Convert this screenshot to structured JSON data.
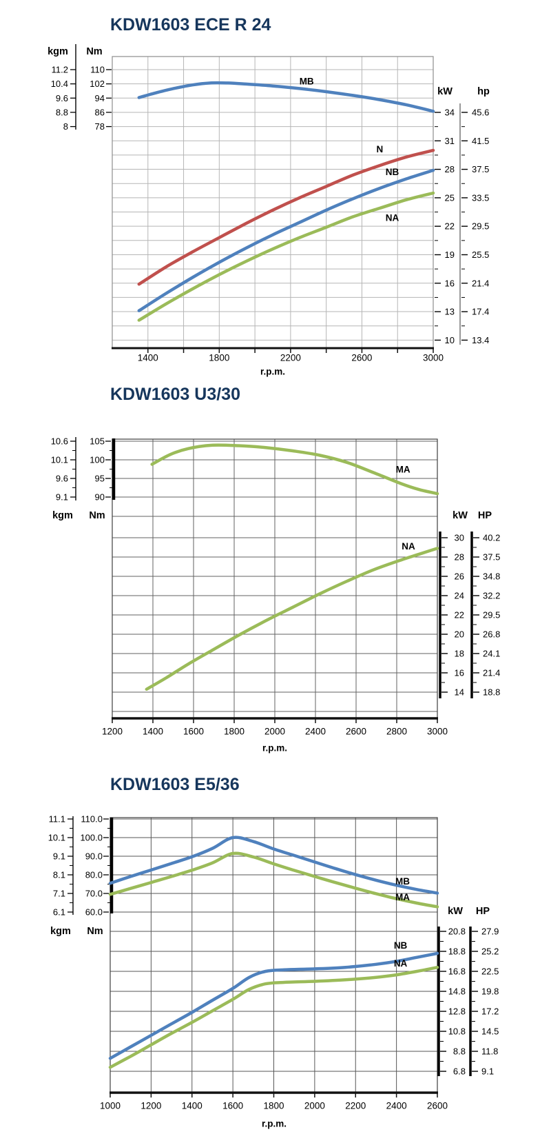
{
  "colors": {
    "blue": "#4f81bd",
    "red": "#c0504d",
    "green": "#9bbb59",
    "title_navy": "#16365c"
  },
  "charts": [
    {
      "title": "KDW1603 ECE R 24",
      "left_scales": {
        "kgm_header": "kgm",
        "nm_header": "Nm",
        "kgm": [
          "11.2",
          "10.4",
          "9.6",
          "8.8",
          "8"
        ],
        "nm": [
          "110",
          "102",
          "94",
          "86",
          "78"
        ]
      },
      "right_scales": {
        "kw_header": "kW",
        "hp_header": "hp",
        "kw": [
          "34",
          "31",
          "28",
          "25",
          "22",
          "19",
          "16",
          "13",
          "10"
        ],
        "hp": [
          "45.6",
          "41.5",
          "37.5",
          "33.5",
          "29.5",
          "25.5",
          "21.4",
          "17.4",
          "13.4"
        ]
      },
      "x_axis": {
        "labels": [
          "1400",
          "1800",
          "2200",
          "2600",
          "3000"
        ],
        "unit": "r.p.m."
      },
      "chart_data": {
        "type": "line",
        "xlabel": "r.p.m.",
        "x_range": [
          1200,
          3000
        ],
        "torque_axis": {
          "units": [
            "kgm",
            "Nm"
          ],
          "nm_ticks": [
            110,
            102,
            94,
            86,
            78
          ]
        },
        "power_axis": {
          "units": [
            "kW",
            "hp"
          ],
          "kw_ticks": [
            34,
            31,
            28,
            25,
            22,
            19,
            16,
            13,
            10
          ]
        },
        "series": [
          {
            "name": "MB",
            "axis": "torque",
            "color": "#4f81bd",
            "label_at": [
              2290,
              103.4
            ],
            "points": [
              [
                1350,
                94.3
              ],
              [
                1450,
                97.1
              ],
              [
                1550,
                99.5
              ],
              [
                1650,
                101.4
              ],
              [
                1750,
                102.5
              ],
              [
                1850,
                102.5
              ],
              [
                1950,
                101.9
              ],
              [
                2100,
                100.8
              ],
              [
                2250,
                99.4
              ],
              [
                2400,
                97.6
              ],
              [
                2550,
                95.5
              ],
              [
                2700,
                93.1
              ],
              [
                2850,
                90.2
              ],
              [
                3000,
                86.6
              ]
            ]
          },
          {
            "name": "N",
            "axis": "power",
            "color": "#c0504d",
            "label_at": [
              2700,
              30.1
            ],
            "points": [
              [
                1350,
                15.9
              ],
              [
                1500,
                17.7
              ],
              [
                1650,
                19.3
              ],
              [
                1800,
                20.8
              ],
              [
                1950,
                22.3
              ],
              [
                2100,
                23.7
              ],
              [
                2250,
                25.0
              ],
              [
                2400,
                26.2
              ],
              [
                2550,
                27.4
              ],
              [
                2700,
                28.4
              ],
              [
                2850,
                29.3
              ],
              [
                3000,
                30.0
              ]
            ]
          },
          {
            "name": "NB",
            "axis": "power",
            "color": "#4f81bd",
            "label_at": [
              2770,
              27.7
            ],
            "points": [
              [
                1350,
                13.1
              ],
              [
                1500,
                14.9
              ],
              [
                1650,
                16.6
              ],
              [
                1800,
                18.2
              ],
              [
                1950,
                19.7
              ],
              [
                2100,
                21.1
              ],
              [
                2250,
                22.4
              ],
              [
                2400,
                23.7
              ],
              [
                2550,
                24.9
              ],
              [
                2700,
                26.0
              ],
              [
                2850,
                27.0
              ],
              [
                3000,
                27.9
              ]
            ]
          },
          {
            "name": "NA",
            "axis": "power",
            "color": "#9bbb59",
            "label_at": [
              2770,
              22.9
            ],
            "points": [
              [
                1350,
                12.1
              ],
              [
                1500,
                13.8
              ],
              [
                1650,
                15.4
              ],
              [
                1800,
                16.9
              ],
              [
                1950,
                18.3
              ],
              [
                2100,
                19.6
              ],
              [
                2250,
                20.8
              ],
              [
                2400,
                21.9
              ],
              [
                2550,
                23.0
              ],
              [
                2700,
                23.9
              ],
              [
                2850,
                24.8
              ],
              [
                3000,
                25.5
              ]
            ]
          }
        ]
      }
    },
    {
      "title": "KDW1603 U3/30",
      "left_scales": {
        "kgm_header": "kgm",
        "nm_header": "Nm",
        "kgm": [
          "10.6",
          "10.1",
          "9.6",
          "9.1"
        ],
        "nm": [
          "105",
          "100",
          "95",
          "90"
        ]
      },
      "right_scales": {
        "kw_header": "kW",
        "hp_header": "HP",
        "kw": [
          "30",
          "28",
          "26",
          "24",
          "22",
          "20",
          "18",
          "16",
          "14"
        ],
        "hp": [
          "40.2",
          "37.5",
          "34.8",
          "32.2",
          "29.5",
          "26.8",
          "24.1",
          "21.4",
          "18.8"
        ]
      },
      "x_axis": {
        "labels": [
          "1200",
          "1400",
          "1600",
          "1800",
          "2000",
          "2400",
          "2600",
          "2800",
          "3000"
        ],
        "unit": "r.p.m."
      },
      "chart_data": {
        "type": "line",
        "xlabel": "r.p.m.",
        "x_range": [
          1200,
          3000
        ],
        "note_axis_labels_as_printed": [
          "1200",
          "1400",
          "1600",
          "1800",
          "2000",
          "2400",
          "2600",
          "2800",
          "3000"
        ],
        "torque_axis": {
          "units": [
            "kgm",
            "Nm"
          ],
          "nm_ticks": [
            105,
            100,
            95,
            90
          ]
        },
        "power_axis": {
          "units": [
            "kW",
            "HP"
          ],
          "kw_ticks": [
            30,
            28,
            26,
            24,
            22,
            20,
            18,
            16,
            14
          ]
        },
        "series": [
          {
            "name": "MA",
            "axis": "torque",
            "color": "#9bbb59",
            "label_at": [
              2810,
              97.4
            ],
            "points": [
              [
                1420,
                98.8
              ],
              [
                1520,
                101.4
              ],
              [
                1620,
                103.0
              ],
              [
                1750,
                103.9
              ],
              [
                1900,
                103.8
              ],
              [
                2050,
                103.3
              ],
              [
                2200,
                102.4
              ],
              [
                2350,
                101.2
              ],
              [
                2500,
                99.3
              ],
              [
                2650,
                96.5
              ],
              [
                2800,
                93.6
              ],
              [
                2900,
                92.0
              ],
              [
                3000,
                90.9
              ]
            ]
          },
          {
            "name": "NA",
            "axis": "power",
            "color": "#9bbb59",
            "label_at": [
              2840,
              29.1
            ],
            "points": [
              [
                1390,
                14.3
              ],
              [
                1500,
                15.5
              ],
              [
                1620,
                16.9
              ],
              [
                1750,
                18.3
              ],
              [
                1900,
                19.9
              ],
              [
                2050,
                21.4
              ],
              [
                2200,
                22.8
              ],
              [
                2350,
                24.2
              ],
              [
                2500,
                25.5
              ],
              [
                2650,
                26.7
              ],
              [
                2800,
                27.7
              ],
              [
                2900,
                28.3
              ],
              [
                3000,
                28.9
              ]
            ]
          }
        ]
      }
    },
    {
      "title": "KDW1603 E5/36",
      "left_scales": {
        "kgm_header": "kgm",
        "nm_header": "Nm",
        "kgm": [
          "11.1",
          "10.1",
          "9.1",
          "8.1",
          "7.1",
          "6.1"
        ],
        "nm": [
          "110.0",
          "100.0",
          "90.0",
          "80.0",
          "70.0",
          "60.0"
        ]
      },
      "right_scales": {
        "kw_header": "kW",
        "hp_header": "HP",
        "kw": [
          "20.8",
          "18.8",
          "16.8",
          "14.8",
          "12.8",
          "10.8",
          "8.8",
          "6.8"
        ],
        "hp": [
          "27.9",
          "25.2",
          "22.5",
          "19.8",
          "17.2",
          "14.5",
          "11.8",
          "9.1"
        ]
      },
      "x_axis": {
        "labels": [
          "1000",
          "1200",
          "1400",
          "1600",
          "1800",
          "2000",
          "2200",
          "2400",
          "2600"
        ],
        "unit": "r.p.m."
      },
      "chart_data": {
        "type": "line",
        "xlabel": "r.p.m.",
        "x_range": [
          1000,
          2600
        ],
        "torque_axis": {
          "units": [
            "kgm",
            "Nm"
          ],
          "nm_ticks": [
            110,
            100,
            90,
            80,
            70,
            60
          ]
        },
        "power_axis": {
          "units": [
            "kW",
            "HP"
          ],
          "kw_ticks": [
            20.8,
            18.8,
            16.8,
            14.8,
            12.8,
            10.8,
            8.8,
            6.8
          ]
        },
        "series": [
          {
            "name": "MB",
            "axis": "torque",
            "color": "#4f81bd",
            "label_at": [
              2430,
              76.5
            ],
            "points": [
              [
                1000,
                75.5
              ],
              [
                1100,
                79.1
              ],
              [
                1200,
                82.6
              ],
              [
                1300,
                86.1
              ],
              [
                1400,
                89.7
              ],
              [
                1500,
                94.2
              ],
              [
                1600,
                100.0
              ],
              [
                1700,
                97.9
              ],
              [
                1800,
                93.9
              ],
              [
                1900,
                90.4
              ],
              [
                2000,
                86.9
              ],
              [
                2100,
                83.4
              ],
              [
                2200,
                80.1
              ],
              [
                2300,
                77.1
              ],
              [
                2400,
                74.4
              ],
              [
                2500,
                72.1
              ],
              [
                2600,
                70.2
              ]
            ]
          },
          {
            "name": "MA",
            "axis": "torque",
            "color": "#9bbb59",
            "label_at": [
              2430,
              68.0
            ],
            "points": [
              [
                1000,
                69.5
              ],
              [
                1100,
                72.7
              ],
              [
                1200,
                75.9
              ],
              [
                1300,
                79.1
              ],
              [
                1400,
                82.5
              ],
              [
                1500,
                86.4
              ],
              [
                1600,
                91.5
              ],
              [
                1700,
                89.6
              ],
              [
                1800,
                85.9
              ],
              [
                1900,
                82.4
              ],
              [
                2000,
                79.1
              ],
              [
                2100,
                75.9
              ],
              [
                2200,
                72.8
              ],
              [
                2300,
                69.9
              ],
              [
                2400,
                67.2
              ],
              [
                2500,
                64.8
              ],
              [
                2600,
                62.8
              ]
            ]
          },
          {
            "name": "NB",
            "axis": "power",
            "color": "#4f81bd",
            "label_at": [
              2420,
              19.4
            ],
            "points": [
              [
                1000,
                8.1
              ],
              [
                1100,
                9.25
              ],
              [
                1200,
                10.4
              ],
              [
                1300,
                11.55
              ],
              [
                1400,
                12.7
              ],
              [
                1500,
                13.9
              ],
              [
                1600,
                15.1
              ],
              [
                1680,
                16.2
              ],
              [
                1760,
                16.8
              ],
              [
                1850,
                16.95
              ],
              [
                2000,
                17.05
              ],
              [
                2150,
                17.2
              ],
              [
                2300,
                17.5
              ],
              [
                2400,
                17.8
              ],
              [
                2500,
                18.2
              ],
              [
                2600,
                18.6
              ]
            ]
          },
          {
            "name": "NA",
            "axis": "power",
            "color": "#9bbb59",
            "label_at": [
              2420,
              17.6
            ],
            "points": [
              [
                1000,
                7.2
              ],
              [
                1100,
                8.3
              ],
              [
                1200,
                9.45
              ],
              [
                1300,
                10.6
              ],
              [
                1400,
                11.7
              ],
              [
                1500,
                12.85
              ],
              [
                1600,
                14.0
              ],
              [
                1680,
                15.0
              ],
              [
                1760,
                15.55
              ],
              [
                1850,
                15.7
              ],
              [
                2000,
                15.8
              ],
              [
                2150,
                15.95
              ],
              [
                2300,
                16.2
              ],
              [
                2400,
                16.45
              ],
              [
                2500,
                16.8
              ],
              [
                2600,
                17.2
              ]
            ]
          }
        ]
      }
    }
  ]
}
